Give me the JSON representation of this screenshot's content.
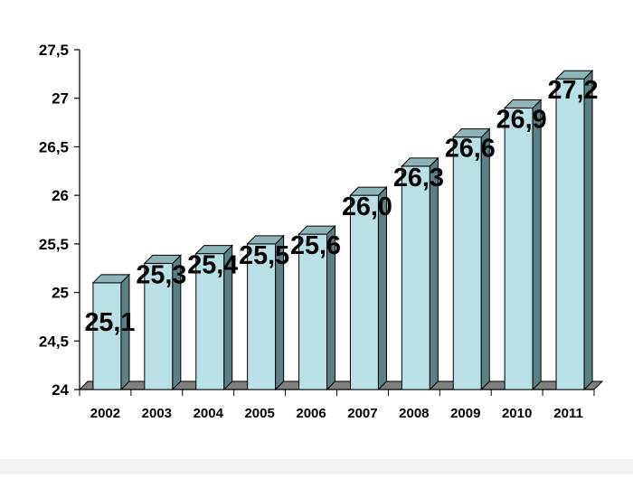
{
  "chart_data": {
    "type": "bar",
    "title": "",
    "xlabel": "",
    "ylabel": "",
    "categories": [
      "2002",
      "2003",
      "2004",
      "2005",
      "2006",
      "2007",
      "2008",
      "2009",
      "2010",
      "2011"
    ],
    "values": [
      25.1,
      25.3,
      25.4,
      25.5,
      25.6,
      26.0,
      26.3,
      26.6,
      26.9,
      27.2
    ],
    "data_labels": [
      "25,1",
      "25,3",
      "25,4",
      "25,5",
      "25,6",
      "26,0",
      "26,3",
      "26,6",
      "26,9",
      "27,2"
    ],
    "ylim": [
      24,
      27.5
    ],
    "yticks": [
      24,
      24.5,
      25,
      25.5,
      26,
      26.5,
      27,
      27.5
    ],
    "ytick_labels": [
      "24",
      "24,5",
      "25",
      "25,5",
      "26",
      "26,5",
      "27",
      "27,5"
    ],
    "grid": false,
    "legend": "none",
    "style": "3d-column",
    "colors": {
      "bar_front": "#b9e0e4",
      "bar_side": "#5b7f84",
      "bar_top": "#8fb4b8",
      "floor": "#808080",
      "axis": "#000000",
      "text": "#000000"
    }
  }
}
